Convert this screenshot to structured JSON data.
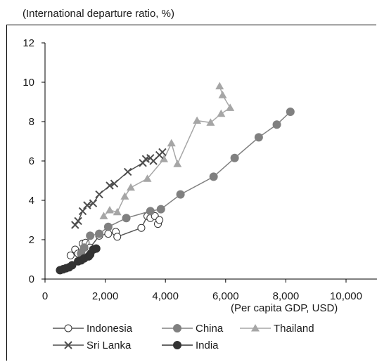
{
  "chart_data": {
    "type": "scatter",
    "ylabel": "(International departure ratio, %)",
    "xlabel": "(Per capita GDP, USD)",
    "xlim": [
      0,
      10000
    ],
    "ylim": [
      0,
      12
    ],
    "x_ticks": [
      0,
      2000,
      4000,
      6000,
      8000,
      10000
    ],
    "x_tick_labels": [
      "0",
      "2,000",
      "4,000",
      "6,000",
      "8,000",
      "10,000"
    ],
    "y_ticks": [
      0,
      2,
      4,
      6,
      8,
      10,
      12
    ],
    "y_tick_labels": [
      "0",
      "2",
      "4",
      "6",
      "8",
      "10",
      "12"
    ],
    "grid": false,
    "legend_position": "bottom",
    "series": [
      {
        "name": "Indonesia",
        "marker": "open-circle",
        "color": "#555555",
        "points": [
          [
            850,
            1.2
          ],
          [
            1000,
            1.5
          ],
          [
            1100,
            1.3
          ],
          [
            1250,
            1.8
          ],
          [
            1350,
            1.85
          ],
          [
            1500,
            1.6
          ],
          [
            1800,
            2.2
          ],
          [
            2100,
            2.3
          ],
          [
            2350,
            2.4
          ],
          [
            2400,
            2.15
          ],
          [
            3200,
            2.6
          ],
          [
            3400,
            3.2
          ],
          [
            3500,
            3.1
          ],
          [
            3650,
            3.2
          ],
          [
            3750,
            2.8
          ],
          [
            3800,
            3.0
          ]
        ]
      },
      {
        "name": "China",
        "marker": "filled-circle",
        "color": "#808080",
        "points": [
          [
            1200,
            1.3
          ],
          [
            1300,
            1.6
          ],
          [
            1500,
            2.2
          ],
          [
            1800,
            2.3
          ],
          [
            2100,
            2.65
          ],
          [
            2700,
            3.1
          ],
          [
            3500,
            3.45
          ],
          [
            3850,
            3.55
          ],
          [
            4500,
            4.3
          ],
          [
            5600,
            5.2
          ],
          [
            6300,
            6.15
          ],
          [
            7100,
            7.2
          ],
          [
            7700,
            7.85
          ],
          [
            8150,
            8.5
          ]
        ]
      },
      {
        "name": "Thailand",
        "marker": "triangle",
        "color": "#a6a6a6",
        "points": [
          [
            1950,
            3.2
          ],
          [
            2150,
            3.5
          ],
          [
            2400,
            3.4
          ],
          [
            2650,
            4.2
          ],
          [
            2850,
            4.65
          ],
          [
            3400,
            5.1
          ],
          [
            3950,
            6.1
          ],
          [
            4200,
            6.9
          ],
          [
            4400,
            5.85
          ],
          [
            5050,
            8.05
          ],
          [
            5500,
            7.95
          ],
          [
            5850,
            8.4
          ],
          [
            6150,
            8.7
          ],
          [
            5900,
            9.35
          ],
          [
            5800,
            9.8
          ]
        ]
      },
      {
        "name": "Sri Lanka",
        "marker": "x",
        "color": "#4d4d4d",
        "points": [
          [
            1000,
            2.75
          ],
          [
            1100,
            2.95
          ],
          [
            1250,
            3.45
          ],
          [
            1400,
            3.75
          ],
          [
            1600,
            3.85
          ],
          [
            1800,
            4.3
          ],
          [
            2150,
            4.75
          ],
          [
            2300,
            4.85
          ],
          [
            2750,
            5.45
          ],
          [
            3250,
            5.9
          ],
          [
            3350,
            6.1
          ],
          [
            3500,
            6.15
          ],
          [
            3600,
            6.0
          ],
          [
            3800,
            6.3
          ],
          [
            3900,
            6.45
          ]
        ]
      },
      {
        "name": "India",
        "marker": "filled-circle",
        "color": "#333333",
        "points": [
          [
            500,
            0.45
          ],
          [
            600,
            0.5
          ],
          [
            700,
            0.55
          ],
          [
            800,
            0.6
          ],
          [
            900,
            0.7
          ],
          [
            1100,
            0.9
          ],
          [
            1200,
            0.95
          ],
          [
            1300,
            1.05
          ],
          [
            1450,
            1.15
          ],
          [
            1500,
            1.25
          ],
          [
            1600,
            1.5
          ],
          [
            1700,
            1.55
          ]
        ]
      }
    ]
  }
}
